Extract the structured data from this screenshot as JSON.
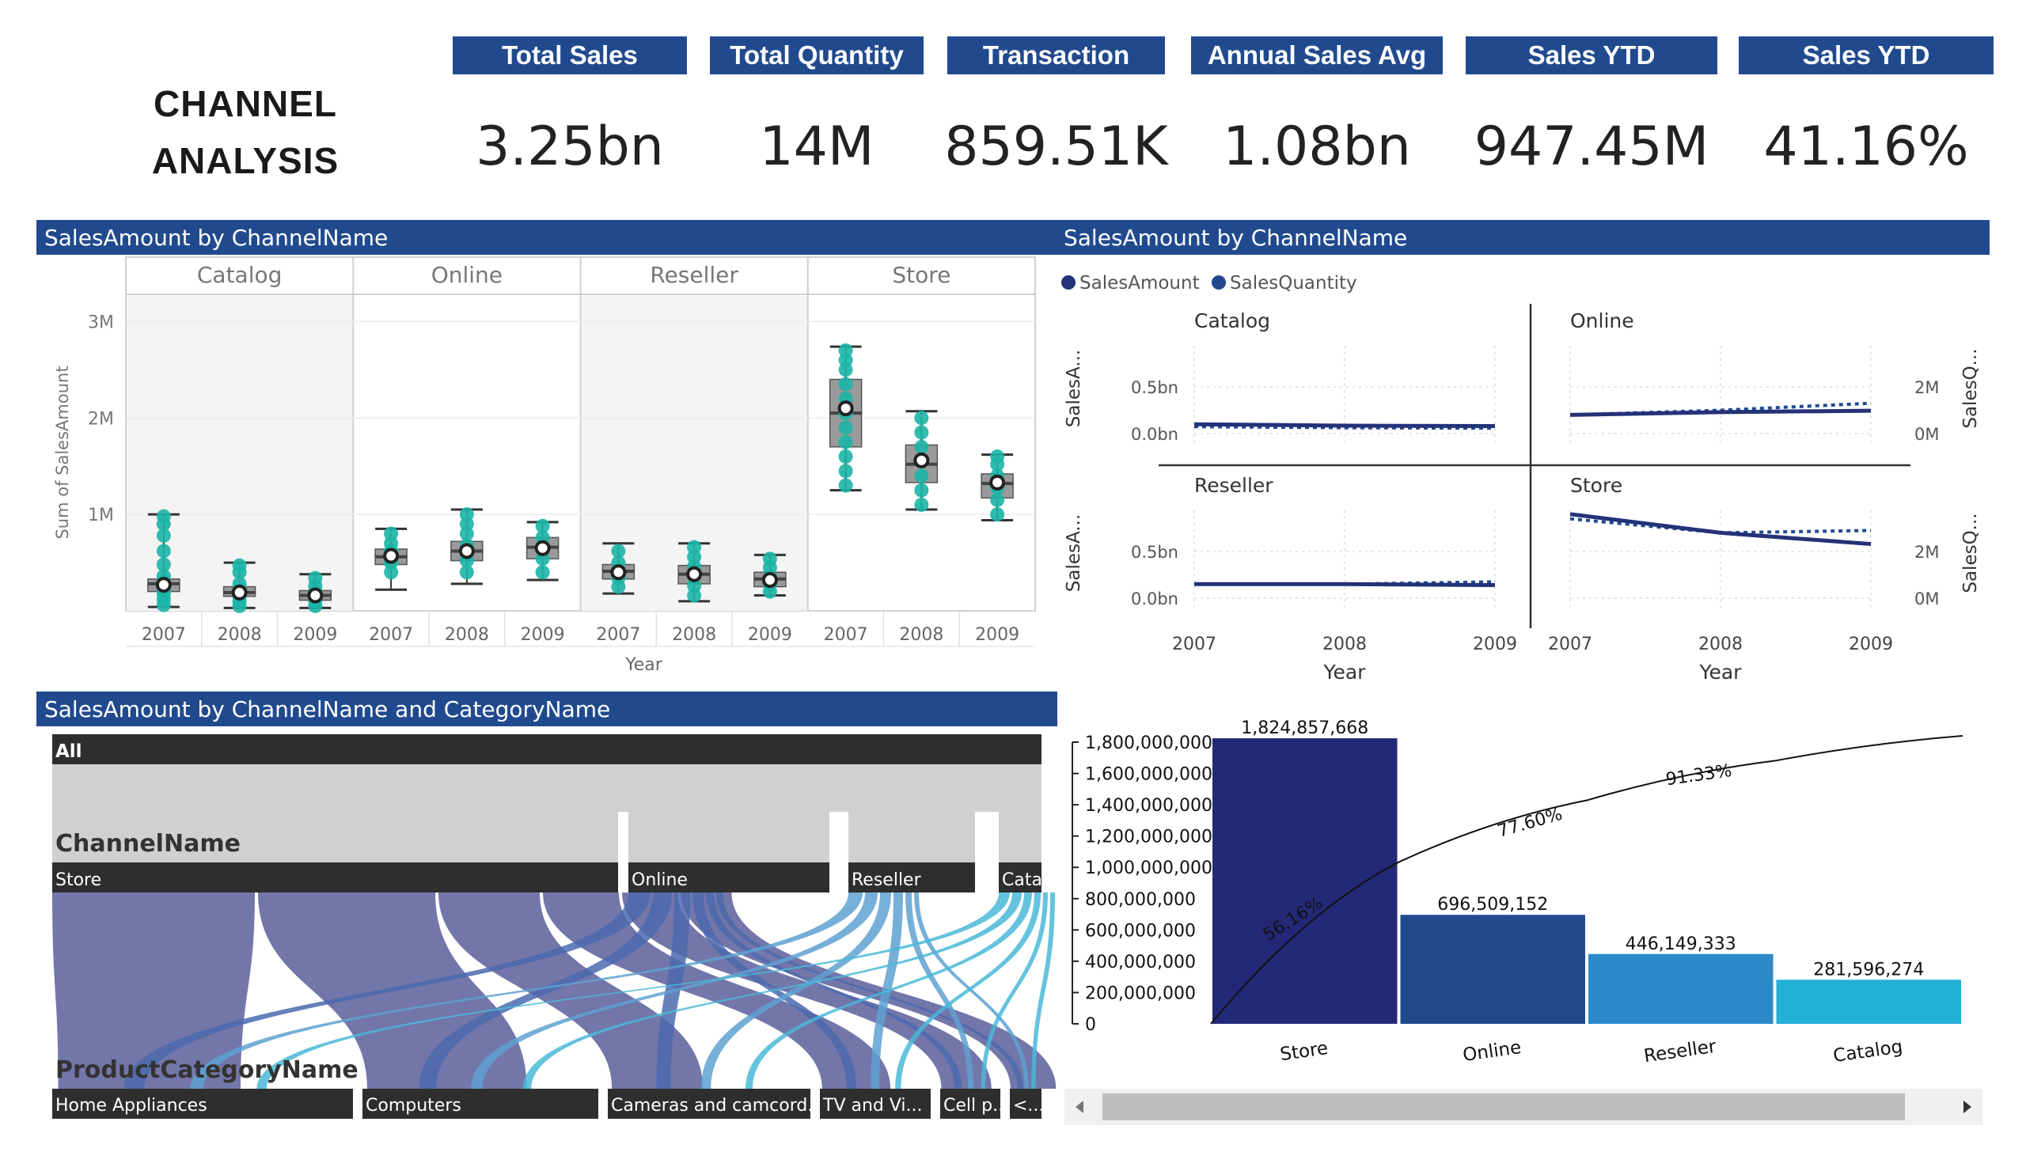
{
  "page": {
    "title_line1": "CHANNEL",
    "title_line2": "ANALYSIS"
  },
  "kpis": [
    {
      "label": "Total Sales",
      "value": "3.25bn"
    },
    {
      "label": "Total Quantity",
      "value": "14M"
    },
    {
      "label": "Transaction",
      "value": "859.51K"
    },
    {
      "label": "Annual Sales Avg",
      "value": "1.08bn"
    },
    {
      "label": "Sales YTD",
      "value": "947.45M"
    },
    {
      "label": "Sales YTD",
      "value": "41.16%"
    }
  ],
  "colors": {
    "header": "#214a8e",
    "teal": "#1bb5a6",
    "navy": "#253278",
    "box": "#7a7a7a"
  },
  "chart_data": [
    {
      "id": "boxplot",
      "type": "box",
      "title": "SalesAmount by ChannelName",
      "ylabel": "Sum of SalesAmount",
      "xlabel": "Year",
      "ylim": [
        0,
        3200000
      ],
      "yticks": [
        {
          "v": 1000000,
          "label": "1M"
        },
        {
          "v": 2000000,
          "label": "2M"
        },
        {
          "v": 3000000,
          "label": "3M"
        }
      ],
      "panels": [
        {
          "name": "Catalog",
          "groups": [
            {
              "year": "2007",
              "min": 40000,
              "q1": 200000,
              "median": 280000,
              "q3": 330000,
              "max": 1000000,
              "mean": 270000,
              "points": [
                60000,
                120000,
                180000,
                240000,
                300000,
                360000,
                480000,
                620000,
                780000,
                900000,
                980000
              ]
            },
            {
              "year": "2008",
              "min": 30000,
              "q1": 150000,
              "median": 190000,
              "q3": 250000,
              "max": 500000,
              "mean": 190000,
              "points": [
                50000,
                100000,
                160000,
                220000,
                280000,
                400000,
                470000
              ]
            },
            {
              "year": "2009",
              "min": 30000,
              "q1": 110000,
              "median": 160000,
              "q3": 210000,
              "max": 380000,
              "mean": 160000,
              "points": [
                50000,
                100000,
                150000,
                200000,
                260000,
                340000
              ]
            }
          ]
        },
        {
          "name": "Online",
          "groups": [
            {
              "year": "2007",
              "min": 220000,
              "q1": 480000,
              "median": 560000,
              "q3": 640000,
              "max": 850000,
              "mean": 570000,
              "points": [
                400000,
                500000,
                560000,
                620000,
                700000,
                800000
              ]
            },
            {
              "year": "2008",
              "min": 280000,
              "q1": 520000,
              "median": 620000,
              "q3": 720000,
              "max": 1050000,
              "mean": 620000,
              "points": [
                400000,
                520000,
                600000,
                680000,
                800000,
                900000,
                1000000
              ]
            },
            {
              "year": "2009",
              "min": 320000,
              "q1": 540000,
              "median": 660000,
              "q3": 760000,
              "max": 920000,
              "mean": 650000,
              "points": [
                400000,
                540000,
                650000,
                760000,
                880000
              ]
            }
          ]
        },
        {
          "name": "Reseller",
          "groups": [
            {
              "year": "2007",
              "min": 180000,
              "q1": 330000,
              "median": 410000,
              "q3": 480000,
              "max": 700000,
              "mean": 400000,
              "points": [
                250000,
                340000,
                420000,
                500000,
                620000
              ]
            },
            {
              "year": "2008",
              "min": 100000,
              "q1": 280000,
              "median": 380000,
              "q3": 470000,
              "max": 700000,
              "mean": 380000,
              "points": [
                160000,
                260000,
                360000,
                460000,
                560000,
                660000
              ]
            },
            {
              "year": "2009",
              "min": 160000,
              "q1": 250000,
              "median": 330000,
              "q3": 400000,
              "max": 580000,
              "mean": 320000,
              "points": [
                200000,
                280000,
                350000,
                450000,
                540000
              ]
            }
          ]
        },
        {
          "name": "Store",
          "groups": [
            {
              "year": "2007",
              "min": 1250000,
              "q1": 1700000,
              "median": 2050000,
              "q3": 2400000,
              "max": 2740000,
              "mean": 2100000,
              "points": [
                1300000,
                1450000,
                1600000,
                1750000,
                1900000,
                2050000,
                2200000,
                2350000,
                2500000,
                2600000,
                2700000
              ]
            },
            {
              "year": "2008",
              "min": 1050000,
              "q1": 1330000,
              "median": 1520000,
              "q3": 1720000,
              "max": 2070000,
              "mean": 1560000,
              "points": [
                1100000,
                1250000,
                1400000,
                1550000,
                1700000,
                1850000,
                2000000
              ]
            },
            {
              "year": "2009",
              "min": 940000,
              "q1": 1170000,
              "median": 1320000,
              "q3": 1420000,
              "max": 1620000,
              "mean": 1330000,
              "points": [
                1000000,
                1150000,
                1280000,
                1400000,
                1520000,
                1600000
              ]
            }
          ]
        }
      ]
    },
    {
      "id": "smallmultiples",
      "type": "line",
      "title": "SalesAmount by ChannelName",
      "legend": [
        {
          "name": "SalesAmount"
        },
        {
          "name": "SalesQuantity"
        }
      ],
      "xlabel": "Year",
      "left_axis_title": "SalesA...",
      "right_axis_title": "SalesQ...",
      "left_ticks": [
        "0.5bn",
        "0.0bn"
      ],
      "right_ticks": [
        "2M",
        "0M"
      ],
      "x": [
        "2007",
        "2008",
        "2009"
      ],
      "ylim": [
        0,
        1000000000
      ],
      "y2lim": [
        0,
        4000000
      ],
      "panels": [
        {
          "name": "Catalog",
          "SalesAmount": [
            100000000,
            85000000,
            80000000
          ],
          "SalesQuantity": [
            300000,
            250000,
            230000
          ]
        },
        {
          "name": "Online",
          "SalesAmount": [
            200000000,
            230000000,
            245000000
          ],
          "SalesQuantity": [
            800000,
            1000000,
            1300000
          ]
        },
        {
          "name": "Reseller",
          "SalesAmount": [
            150000000,
            150000000,
            140000000
          ],
          "SalesQuantity": [
            600000,
            600000,
            700000
          ]
        },
        {
          "name": "Store",
          "SalesAmount": [
            900000000,
            700000000,
            580000000
          ],
          "SalesQuantity": [
            3400000,
            2800000,
            2900000
          ]
        }
      ]
    },
    {
      "id": "sankey",
      "type": "decomposition",
      "title": "SalesAmount by ChannelName and CategoryName",
      "root": "All",
      "level1_title": "ChannelName",
      "level2_title": "ProductCategoryName",
      "channels": [
        "Store",
        "Online",
        "Reseller",
        "Catalog"
      ],
      "channel_values": [
        1824857668,
        696509152,
        446149333,
        281596274
      ],
      "categories": [
        "Home Appliances",
        "Computers",
        "Cameras and camcord...",
        "TV and Vi...",
        "Cell p...",
        "<..."
      ]
    },
    {
      "id": "pareto",
      "type": "bar",
      "categories": [
        "Store",
        "Online",
        "Reseller",
        "Catalog"
      ],
      "values": [
        1824857668,
        696509152,
        446149333,
        281596274
      ],
      "value_labels": [
        "1,824,857,668",
        "696,509,152",
        "446,149,333",
        "281,596,274"
      ],
      "cumulative_labels": [
        "56.16%",
        "77.60%",
        "91.33%"
      ],
      "ylim": [
        0,
        1800000000
      ],
      "yticks": [
        "0",
        "200,000,000",
        "400,000,000",
        "600,000,000",
        "800,000,000",
        "1,000,000,000",
        "1,200,000,000",
        "1,400,000,000",
        "1,600,000,000",
        "1,800,000,000"
      ],
      "bar_colors": [
        "#232877",
        "#214a8e",
        "#2b89c9",
        "#23b0d5"
      ]
    }
  ]
}
